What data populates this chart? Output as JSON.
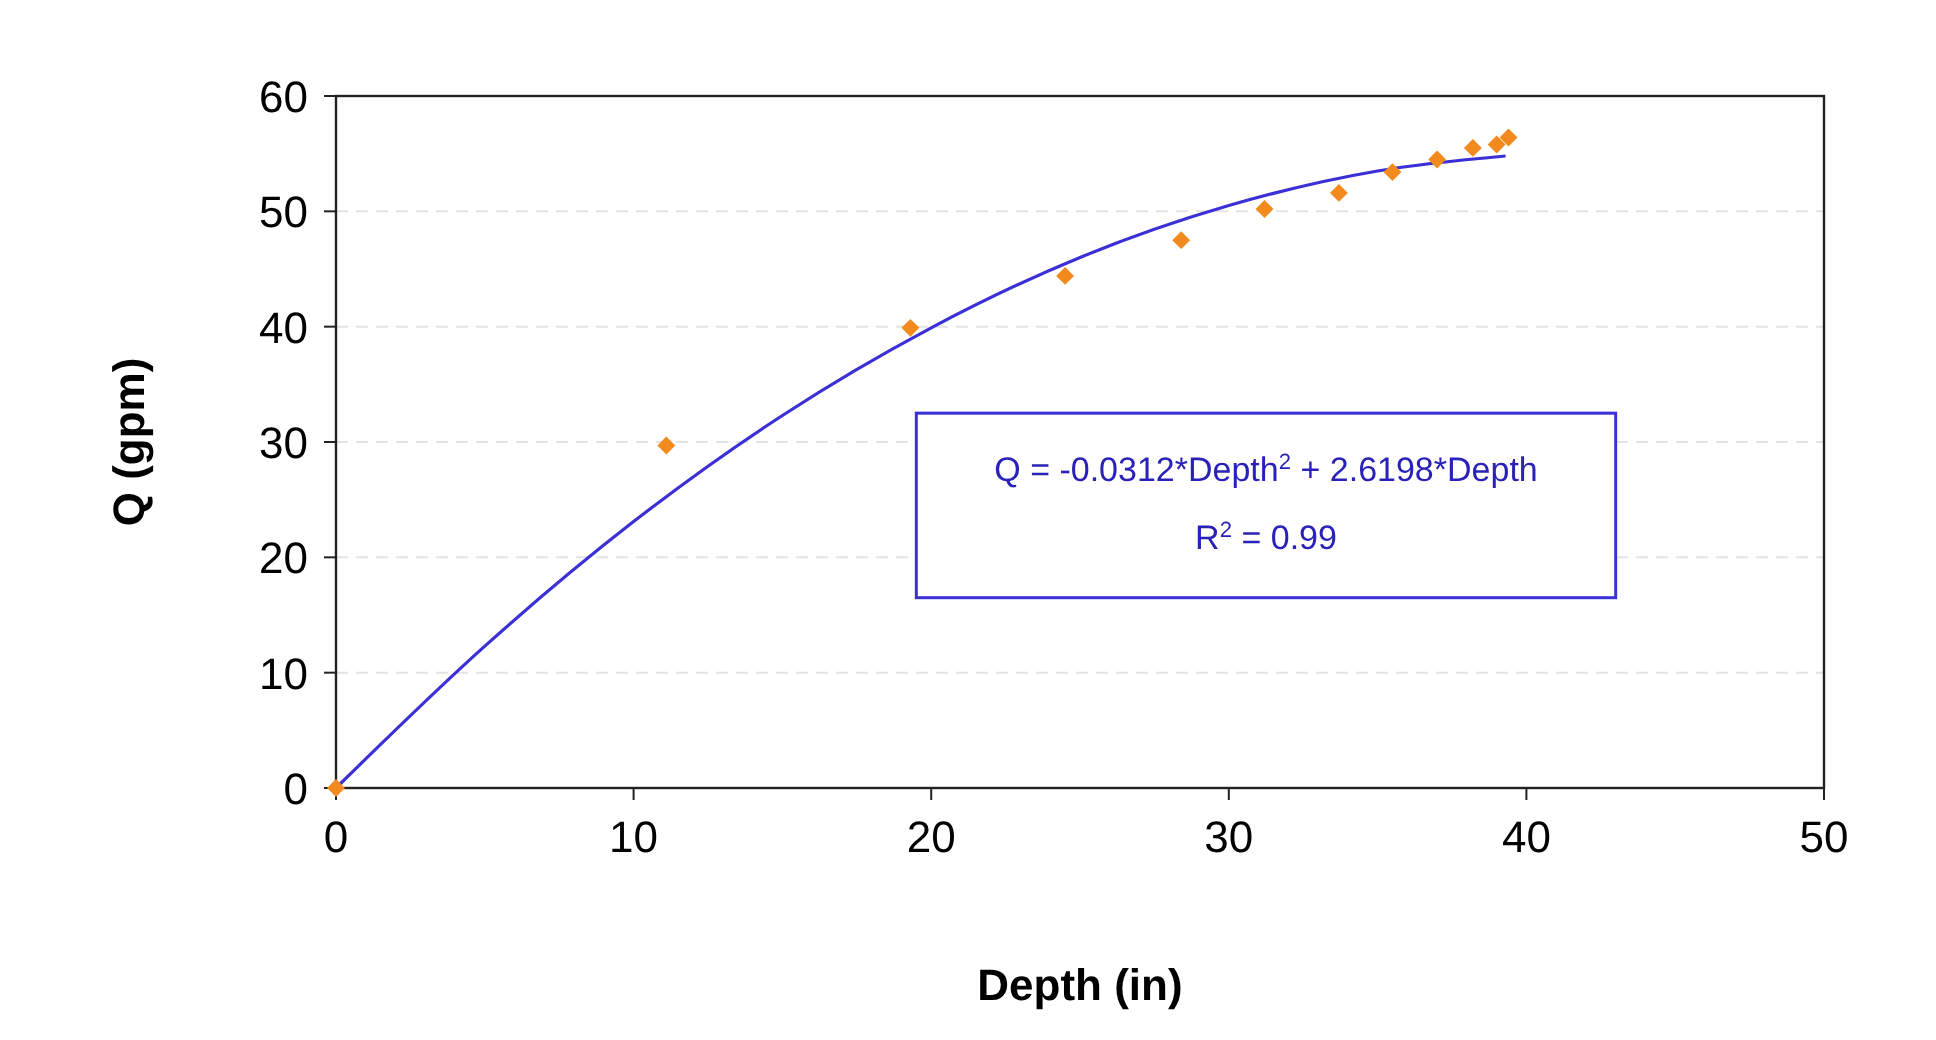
{
  "chart_data": {
    "type": "scatter",
    "xlabel": "Depth (in)",
    "ylabel": "Q (gpm)",
    "xlim": [
      0,
      50
    ],
    "xticks": [
      0,
      10,
      20,
      30,
      40,
      50
    ],
    "ylim": [
      0,
      60
    ],
    "yticks": [
      0,
      10,
      20,
      30,
      40,
      50,
      60
    ],
    "grid": "y",
    "series": [
      {
        "color": "#f28a1e",
        "marker": "diamond",
        "x": [
          0,
          11.1,
          19.3,
          24.5,
          28.4,
          31.2,
          33.7,
          35.5,
          37.0,
          38.2,
          39.0,
          39.4
        ],
        "values": [
          0,
          29.7,
          39.9,
          44.4,
          47.5,
          50.2,
          51.6,
          53.4,
          54.5,
          55.5,
          55.8,
          56.4
        ]
      },
      {
        "type": "line",
        "color": "#3b2fd6",
        "marker": "none",
        "line_style": "solid",
        "x": [
          0,
          5,
          10,
          15,
          20,
          25,
          30,
          35,
          39.3
        ],
        "values": [
          0,
          12.3,
          23.1,
          32.3,
          39.9,
          46.0,
          50.5,
          53.5,
          54.8
        ]
      }
    ],
    "annotations": [
      "Q = -0.0312*Depth$^{2}$ + 2.6198*Depth",
      "R$^{2}$ = 0.99"
    ]
  }
}
